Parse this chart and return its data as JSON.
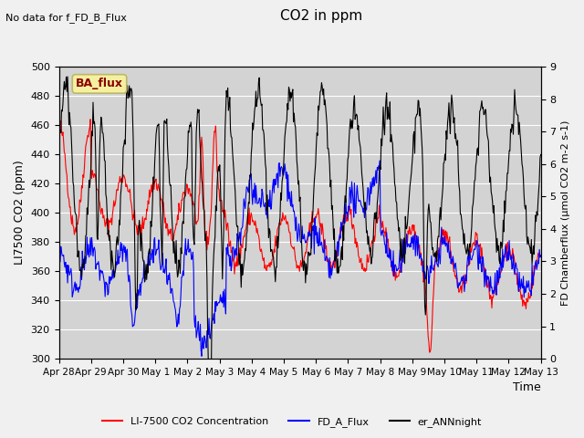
{
  "title": "CO2 in ppm",
  "top_left_text": "No data for f_FD_B_Flux",
  "ylabel_left": "LI7500 CO2 (ppm)",
  "ylabel_right": "FD Chamberflux (μmol CO2 m-2 s-1)",
  "xlabel": "Time",
  "ylim_left": [
    300,
    500
  ],
  "ylim_right": [
    0.0,
    9.0
  ],
  "ba_flux_label": "BA_flux",
  "legend_entries": [
    "LI-7500 CO2 Concentration",
    "FD_A_Flux",
    "er_ANNnight"
  ],
  "line_colors": [
    "red",
    "blue",
    "black"
  ],
  "background_color": "#d3d3d3",
  "fig_background": "#f0f0f0",
  "xtick_labels": [
    "Apr 28",
    "Apr 29",
    "Apr 30",
    "May 1",
    "May 2",
    "May 3",
    "May 4",
    "May 5",
    "May 6",
    "May 7",
    "May 8",
    "May 9",
    "May 10",
    "May 11",
    "May 12",
    "May 13"
  ],
  "n_days": 15,
  "pts_per_day": 48
}
